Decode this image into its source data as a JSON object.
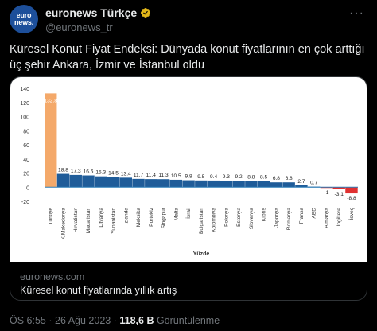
{
  "author": {
    "avatar_text_line1": "euro",
    "avatar_text_line2": "news.",
    "display_name": "euronews Türkçe",
    "handle": "@euronews_tr",
    "more_icon": "ellipsis-icon",
    "verified_icon": "verified-badge-icon"
  },
  "tweet": {
    "text": "Küresel Konut Fiyat Endeksi: Dünyada konut fiyatlarının en çok arttığı üç şehir Ankara, İzmir ve İstanbul oldu"
  },
  "card": {
    "domain": "euronews.com",
    "title": "Küresel konut fiyatlarında yıllık artış"
  },
  "meta": {
    "time": "ÖS 6:55",
    "separator": "·",
    "date": "26 Ağu 2023",
    "views_count": "118,6 B",
    "views_label": "Görüntülenme"
  },
  "chart_data": {
    "type": "bar",
    "categories": [
      "Türkiye",
      "K.Makedonya",
      "Hırvatistan",
      "Macaristan",
      "Litvanya",
      "Yunanistan",
      "İzlanda",
      "Meksika",
      "Portekiz",
      "Singapur",
      "Malta",
      "İsrail",
      "Bulgaristan",
      "Kolombiya",
      "Polonya",
      "Estonya",
      "Slovenya",
      "Kıbrıs",
      "Japonya",
      "Romanya",
      "Fransa",
      "ABD",
      "Almanya",
      "İngiltere",
      "İsveç"
    ],
    "values": [
      132.8,
      18.8,
      17.3,
      16.6,
      15.3,
      14.5,
      13.4,
      11.7,
      11.4,
      11.3,
      10.5,
      9.8,
      9.5,
      9.4,
      9.3,
      9.2,
      8.8,
      8.5,
      6.8,
      6.8,
      2.7,
      0.7,
      -1,
      -3.1,
      -8.8
    ],
    "value_labels": [
      "132.8",
      "18.8",
      "17.3",
      "16.6",
      "15.3",
      "14.5",
      "13.4",
      "11.7",
      "11.4",
      "11.3",
      "10.5",
      "9.8",
      "9.5",
      "9.4",
      "9.3",
      "9.2",
      "8.8",
      "8.5",
      "6.8",
      "6.8",
      "2.7",
      "0.7",
      "-1",
      "-3.1",
      "-8.8"
    ],
    "xlabel": "Yüzde",
    "ylabel": "",
    "title": "",
    "ylim": [
      -20,
      140
    ],
    "yticks": [
      "140",
      "120",
      "100",
      "80",
      "60",
      "40",
      "20",
      "0",
      "-20"
    ],
    "grid": false,
    "colors": {
      "turkey": "#f4a96a",
      "default": "#1f5c99",
      "zero_line": "#2c7fb8",
      "negative": "#e03131"
    }
  }
}
